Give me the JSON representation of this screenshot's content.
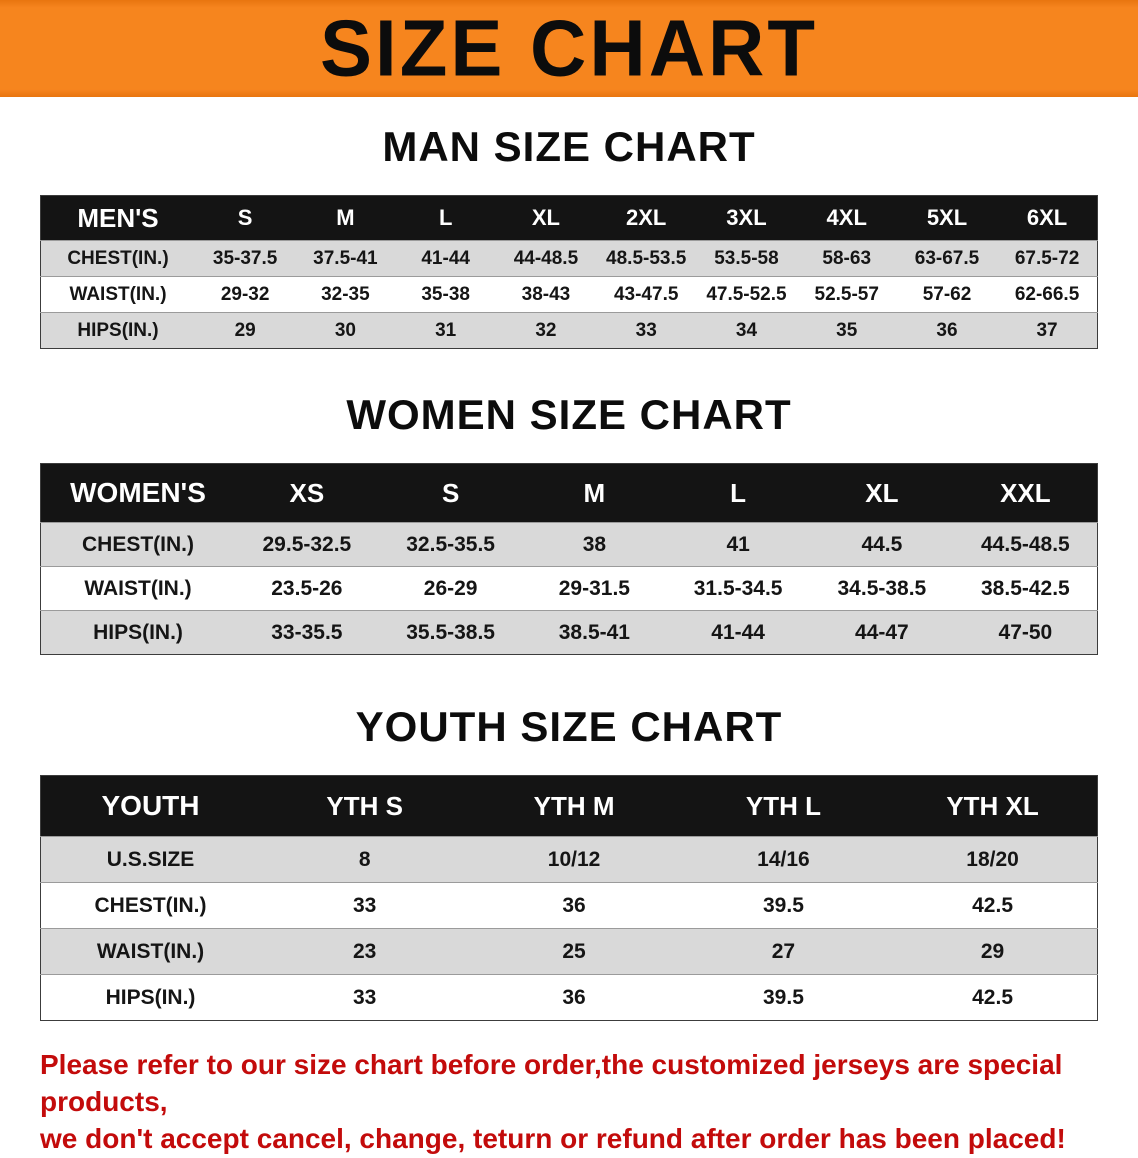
{
  "banner": {
    "title": "SIZE CHART",
    "bg_color": "#F6851E",
    "text_color": "#0C0C0C"
  },
  "sections": [
    {
      "heading": "MAN SIZE CHART",
      "table": {
        "header": [
          "MEN'S",
          "S",
          "M",
          "L",
          "XL",
          "2XL",
          "3XL",
          "4XL",
          "5XL",
          "6XL"
        ],
        "rows": [
          [
            "CHEST(IN.)",
            "35-37.5",
            "37.5-41",
            "41-44",
            "44-48.5",
            "48.5-53.5",
            "53.5-58",
            "58-63",
            "63-67.5",
            "67.5-72"
          ],
          [
            "WAIST(IN.)",
            "29-32",
            "32-35",
            "35-38",
            "38-43",
            "43-47.5",
            "47.5-52.5",
            "52.5-57",
            "57-62",
            "62-66.5"
          ],
          [
            "HIPS(IN.)",
            "29",
            "30",
            "31",
            "32",
            "33",
            "34",
            "35",
            "36",
            "37"
          ]
        ]
      }
    },
    {
      "heading": "WOMEN SIZE CHART",
      "table": {
        "header": [
          "WOMEN'S",
          "XS",
          "S",
          "M",
          "L",
          "XL",
          "XXL"
        ],
        "rows": [
          [
            "CHEST(IN.)",
            "29.5-32.5",
            "32.5-35.5",
            "38",
            "41",
            "44.5",
            "44.5-48.5"
          ],
          [
            "WAIST(IN.)",
            "23.5-26",
            "26-29",
            "29-31.5",
            "31.5-34.5",
            "34.5-38.5",
            "38.5-42.5"
          ],
          [
            "HIPS(IN.)",
            "33-35.5",
            "35.5-38.5",
            "38.5-41",
            "41-44",
            "44-47",
            "47-50"
          ]
        ]
      }
    },
    {
      "heading": "YOUTH SIZE CHART",
      "table": {
        "header": [
          "YOUTH",
          "YTH S",
          "YTH M",
          "YTH L",
          "YTH XL"
        ],
        "rows": [
          [
            "U.S.SIZE",
            "8",
            "10/12",
            "14/16",
            "18/20"
          ],
          [
            "CHEST(IN.)",
            "33",
            "36",
            "39.5",
            "42.5"
          ],
          [
            "WAIST(IN.)",
            "23",
            "25",
            "27",
            "29"
          ],
          [
            "HIPS(IN.)",
            "33",
            "36",
            "39.5",
            "42.5"
          ]
        ]
      }
    }
  ],
  "footer": {
    "line1": "Please refer to our size chart before order,the customized jerseys are special products,",
    "line2": "we don't accept cancel, change, teturn or refund after order has been placed!",
    "text_color": "#C30B0B"
  },
  "colors": {
    "banner_orange": "#F6851E",
    "table_header_bg": "#141414",
    "row_alt_gray": "#D9D9D9",
    "disclaimer_red": "#C30B0B"
  }
}
